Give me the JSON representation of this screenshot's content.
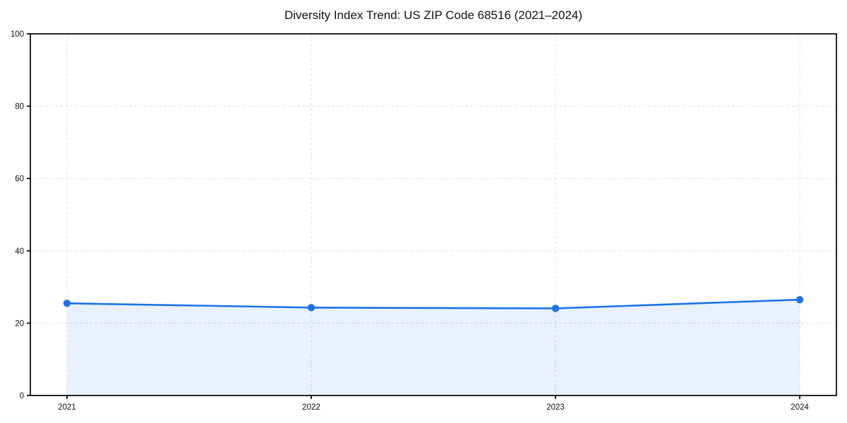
{
  "chart_data": {
    "type": "area",
    "title": "Diversity Index Trend: US ZIP Code 68516 (2021–2024)",
    "x": [
      "2021",
      "2022",
      "2023",
      "2024"
    ],
    "series": [
      {
        "name": "Diversity Index",
        "values": [
          25.5,
          24.3,
          24.1,
          26.5
        ]
      }
    ],
    "xlabel": "",
    "ylabel": "",
    "ylim": [
      0,
      100
    ],
    "yticks": [
      0,
      20,
      40,
      60,
      80,
      100
    ],
    "grid": "dashed-both-axes",
    "legend": "none",
    "colors": {
      "line": "#1a73e8",
      "marker": "#1a73e8",
      "fill": "#1a73e8",
      "fill_opacity": "0.1",
      "grid": "#e0e0e0",
      "axis": "#000000",
      "tick_text": "#111111",
      "background": "#ffffff"
    }
  }
}
